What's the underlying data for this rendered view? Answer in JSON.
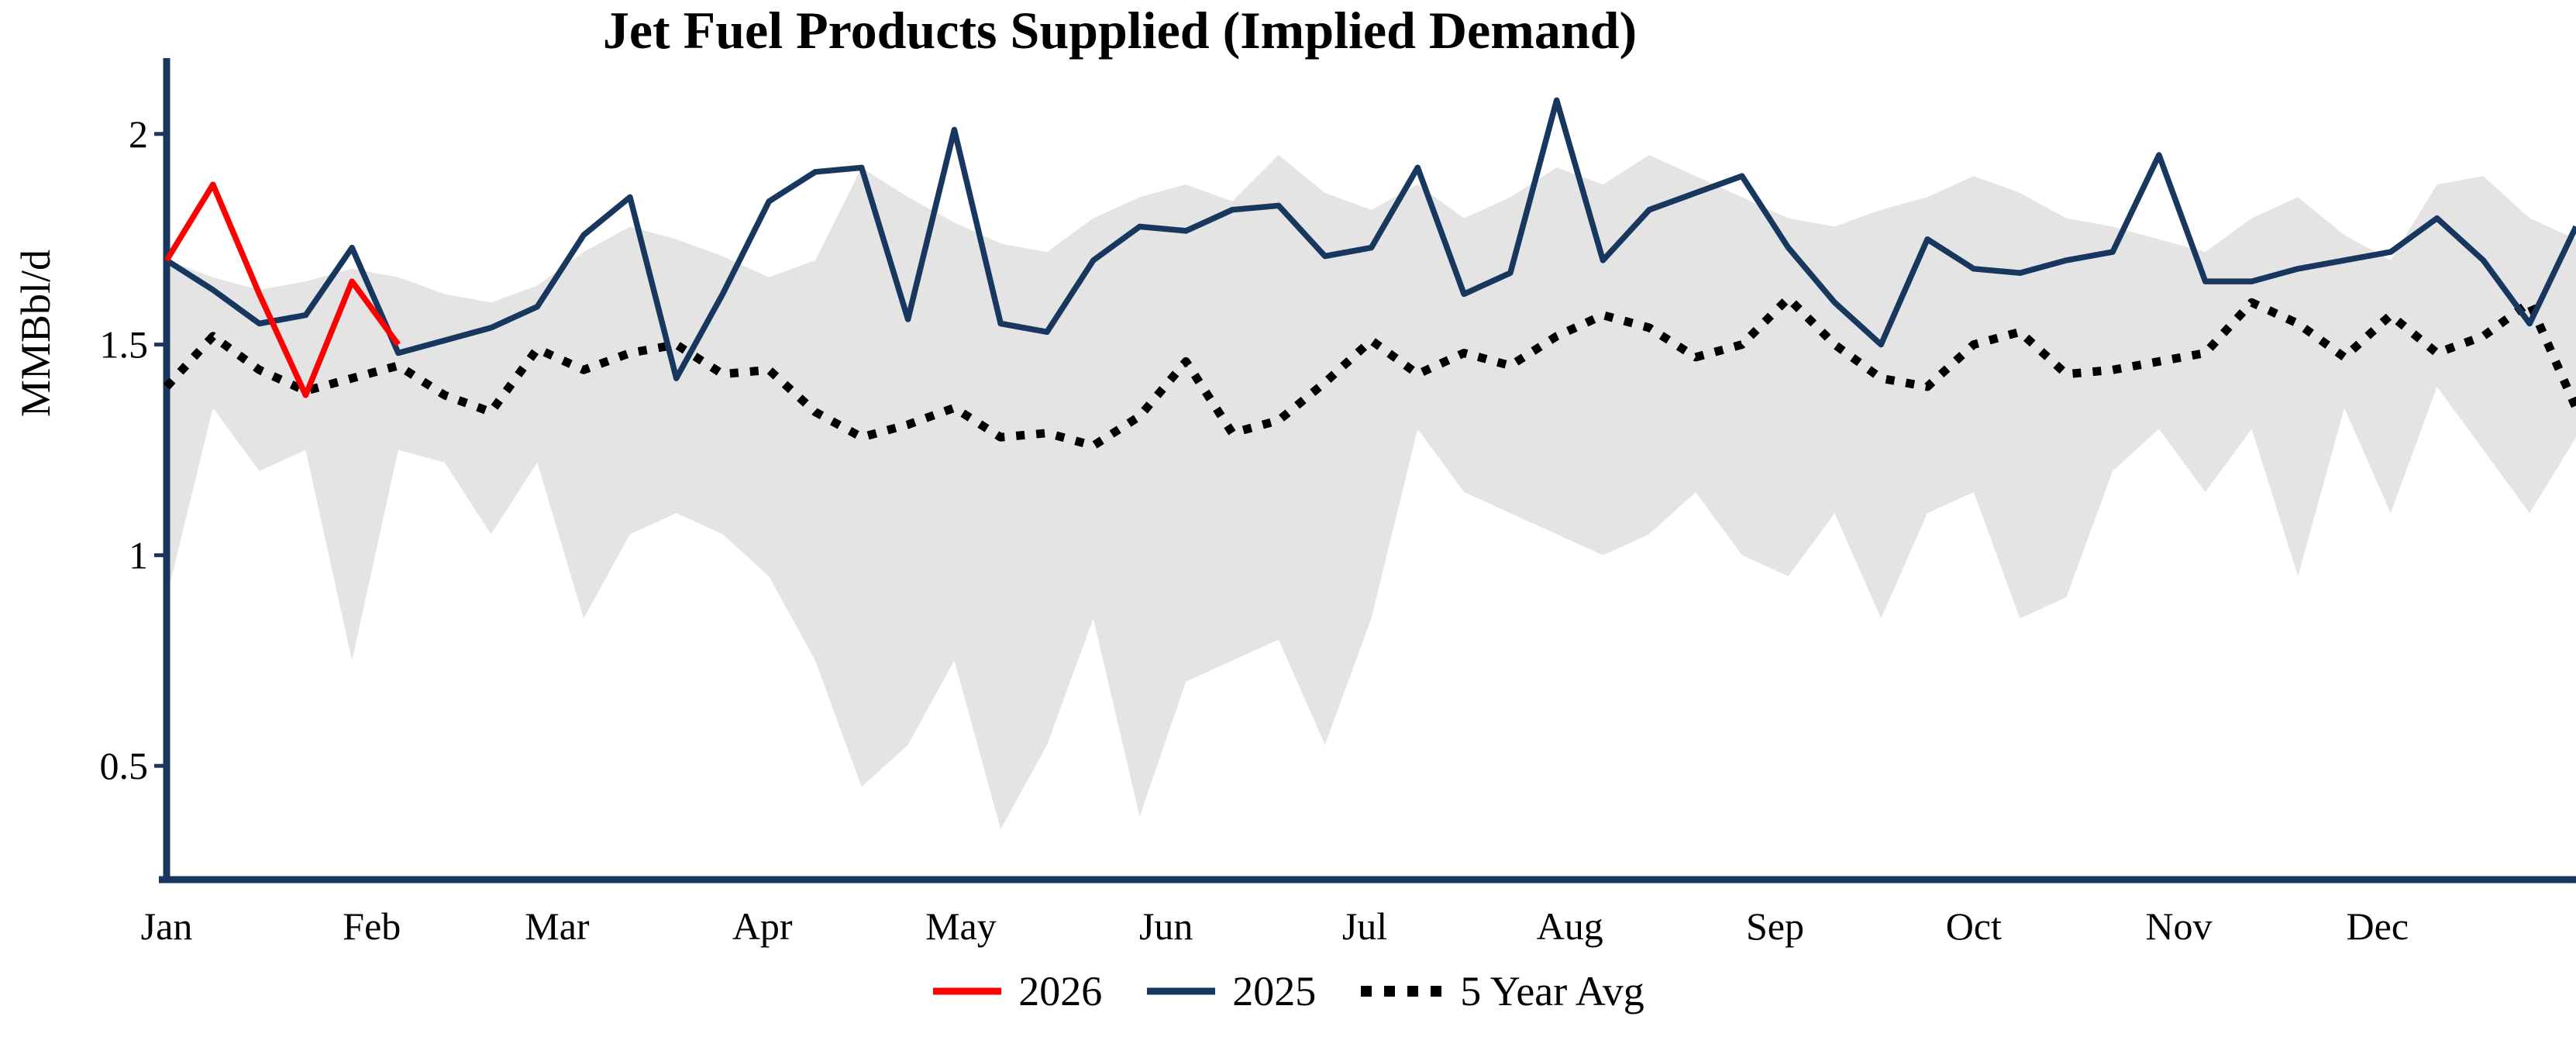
{
  "chart_data": {
    "type": "line",
    "title": "Jet Fuel Products Supplied (Implied Demand)",
    "ylabel": "MMBbl/d",
    "xlabel": "",
    "x_unit": "weekly",
    "months": [
      "Jan",
      "Feb",
      "Mar",
      "Apr",
      "May",
      "Jun",
      "Jul",
      "Aug",
      "Sep",
      "Oct",
      "Nov",
      "Dec"
    ],
    "month_start_days": [
      0,
      31,
      59,
      90,
      120,
      151,
      181,
      212,
      243,
      273,
      304,
      334
    ],
    "y_ticks": [
      0.5,
      1,
      1.5,
      2
    ],
    "ylim": [
      0.23,
      2.18
    ],
    "grid": false,
    "axis_color": "#17375e",
    "text_color": "#000000",
    "legend_position": "bottom",
    "series": [
      {
        "name": "2026",
        "color": "#ff0000",
        "style": "solid",
        "values": [
          1.7,
          1.88,
          1.62,
          1.38,
          1.65,
          1.5
        ]
      },
      {
        "name": "2025",
        "color": "#17375e",
        "style": "solid",
        "values": [
          1.7,
          1.63,
          1.55,
          1.57,
          1.73,
          1.48,
          1.51,
          1.54,
          1.59,
          1.76,
          1.85,
          1.42,
          1.62,
          1.84,
          1.91,
          1.92,
          1.56,
          2.01,
          1.55,
          1.53,
          1.7,
          1.78,
          1.77,
          1.82,
          1.83,
          1.71,
          1.73,
          1.92,
          1.62,
          1.67,
          2.08,
          1.7,
          1.82,
          1.86,
          1.9,
          1.73,
          1.6,
          1.5,
          1.75,
          1.68,
          1.67,
          1.7,
          1.72,
          1.95,
          1.65,
          1.65,
          1.68,
          1.7,
          1.72,
          1.8,
          1.7,
          1.55,
          1.78
        ]
      },
      {
        "name": "5 Year Avg",
        "color": "#000000",
        "style": "dotted",
        "values": [
          1.4,
          1.52,
          1.44,
          1.39,
          1.42,
          1.45,
          1.38,
          1.34,
          1.49,
          1.44,
          1.48,
          1.5,
          1.43,
          1.44,
          1.34,
          1.28,
          1.31,
          1.35,
          1.28,
          1.29,
          1.26,
          1.33,
          1.46,
          1.29,
          1.32,
          1.41,
          1.51,
          1.43,
          1.48,
          1.45,
          1.52,
          1.57,
          1.54,
          1.47,
          1.5,
          1.61,
          1.5,
          1.42,
          1.4,
          1.5,
          1.53,
          1.43,
          1.44,
          1.46,
          1.48,
          1.6,
          1.55,
          1.47,
          1.57,
          1.48,
          1.52,
          1.6,
          1.35
        ]
      }
    ],
    "band": {
      "color": "#e4e4e4",
      "upper": [
        1.7,
        1.66,
        1.63,
        1.65,
        1.68,
        1.66,
        1.62,
        1.6,
        1.64,
        1.72,
        1.78,
        1.75,
        1.71,
        1.66,
        1.7,
        1.92,
        1.85,
        1.79,
        1.74,
        1.72,
        1.8,
        1.85,
        1.88,
        1.84,
        1.95,
        1.86,
        1.82,
        1.88,
        1.8,
        1.85,
        1.92,
        1.88,
        1.95,
        1.9,
        1.85,
        1.8,
        1.78,
        1.82,
        1.85,
        1.9,
        1.86,
        1.8,
        1.78,
        1.75,
        1.72,
        1.8,
        1.85,
        1.76,
        1.7,
        1.88,
        1.9,
        1.8,
        1.75
      ],
      "lower": [
        0.9,
        1.35,
        1.2,
        1.25,
        0.75,
        1.25,
        1.22,
        1.05,
        1.22,
        0.85,
        1.05,
        1.1,
        1.05,
        0.95,
        0.75,
        0.45,
        0.55,
        0.75,
        0.35,
        0.55,
        0.85,
        0.38,
        0.7,
        0.75,
        0.8,
        0.55,
        0.85,
        1.3,
        1.15,
        1.1,
        1.05,
        1.0,
        1.05,
        1.15,
        1.0,
        0.95,
        1.1,
        0.85,
        1.1,
        1.15,
        0.85,
        0.9,
        1.2,
        1.3,
        1.15,
        1.3,
        0.95,
        1.35,
        1.1,
        1.4,
        1.25,
        1.1,
        1.28
      ]
    },
    "legend_items": [
      "2026",
      "2025",
      "5 Year Avg"
    ]
  }
}
